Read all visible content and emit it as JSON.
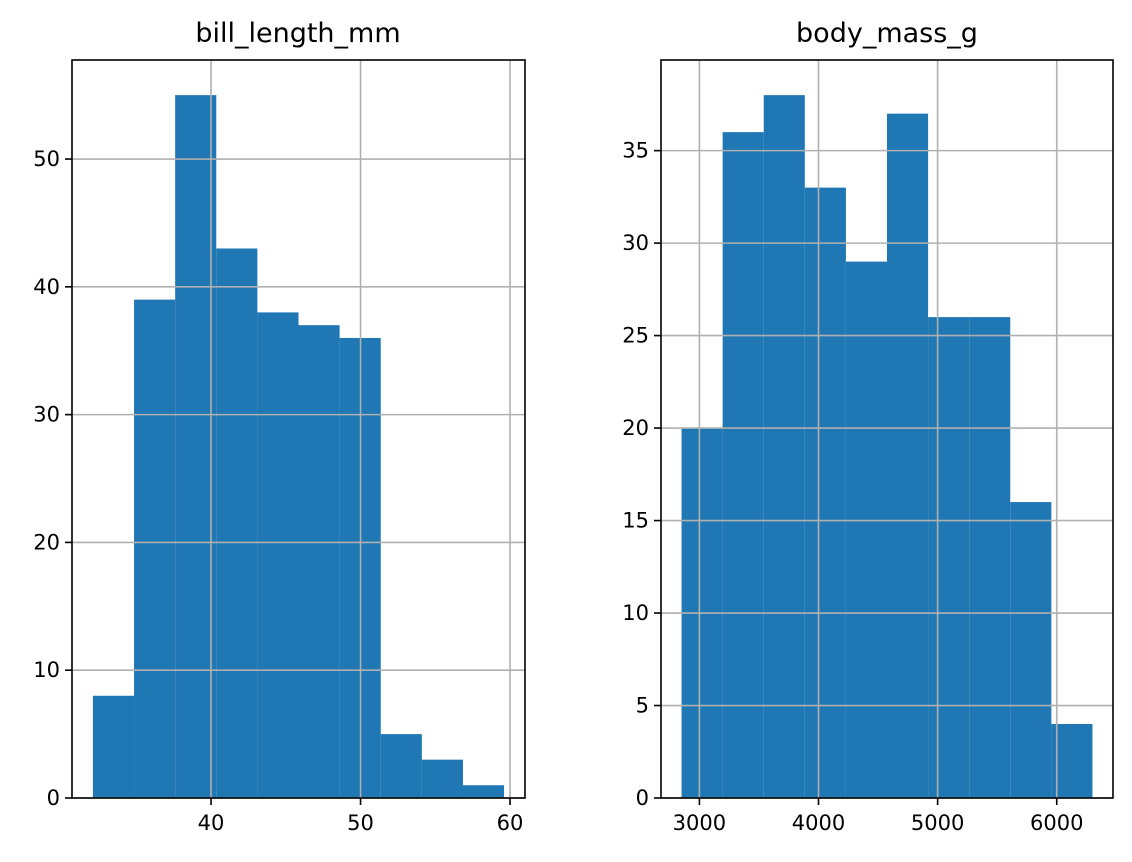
{
  "chart_data": [
    {
      "type": "bar",
      "subtype": "histogram",
      "title": "bill_length_mm",
      "xlabel": "",
      "ylabel": "",
      "bin_edges": [
        32.1,
        34.85,
        37.6,
        40.35,
        43.1,
        45.85,
        48.6,
        51.35,
        54.1,
        56.85,
        59.6
      ],
      "values": [
        8,
        39,
        55,
        43,
        38,
        37,
        36,
        5,
        3,
        1
      ],
      "xlim": [
        30.7,
        61.0
      ],
      "ylim": [
        0,
        57.75
      ],
      "xticks": [
        40,
        50,
        60
      ],
      "yticks": [
        0,
        10,
        20,
        30,
        40,
        50
      ],
      "grid": true,
      "color": "#1f77b4"
    },
    {
      "type": "bar",
      "subtype": "histogram",
      "title": "body_mass_g",
      "xlabel": "",
      "ylabel": "",
      "bin_edges": [
        2850,
        3195,
        3540,
        3885,
        4230,
        4575,
        4920,
        5265,
        5610,
        5955,
        6300
      ],
      "values": [
        20,
        36,
        38,
        33,
        29,
        37,
        26,
        26,
        16,
        4
      ],
      "xlim": [
        2677.5,
        6472.5
      ],
      "ylim": [
        0,
        39.9
      ],
      "xticks": [
        3000,
        4000,
        5000,
        6000
      ],
      "yticks": [
        0,
        5,
        10,
        15,
        20,
        25,
        30,
        35
      ],
      "grid": true,
      "color": "#1f77b4"
    }
  ]
}
